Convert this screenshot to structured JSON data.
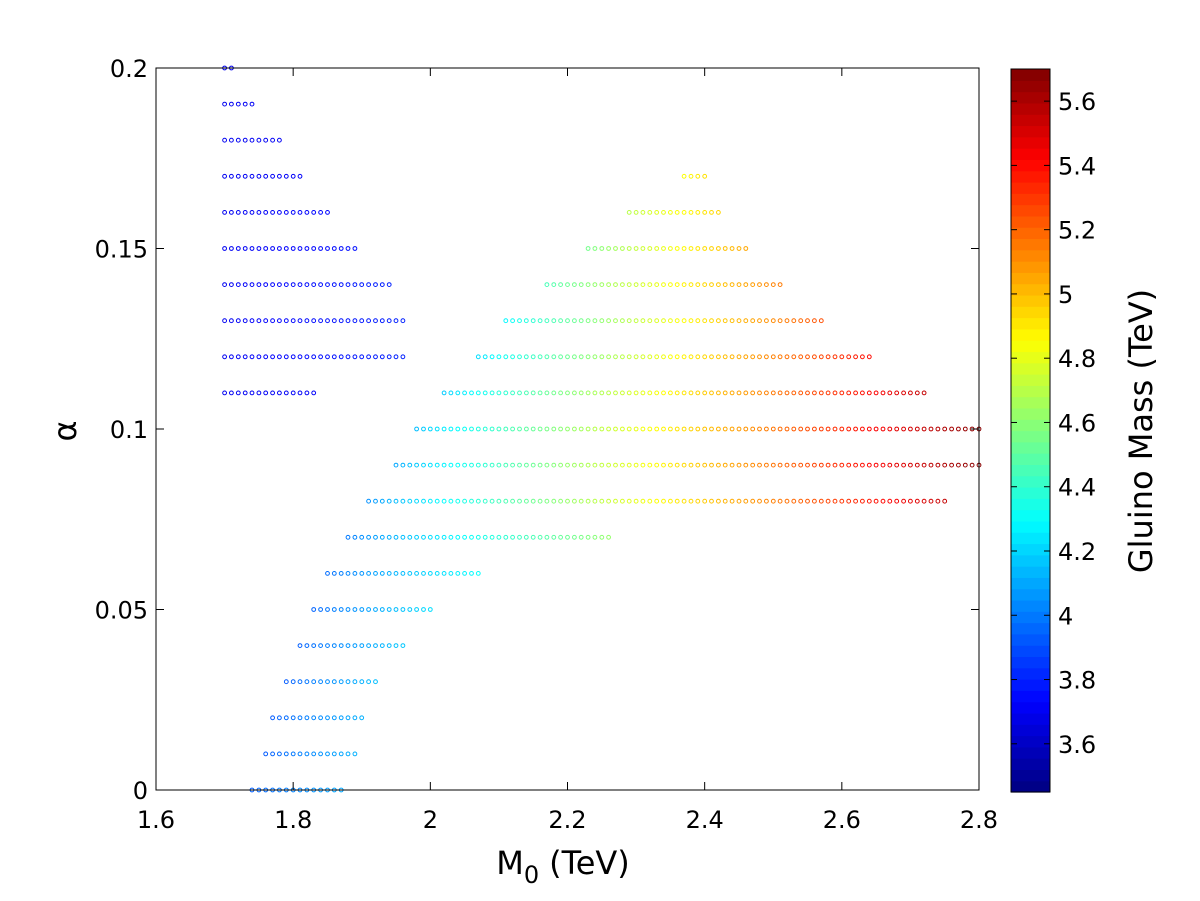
{
  "chart_data": {
    "type": "scatter",
    "title": "",
    "xlabel": "M",
    "xlabel_sub": "0",
    "xlabel_unit": "(TeV)",
    "ylabel": "α",
    "xlim": [
      1.6,
      2.8
    ],
    "ylim": [
      0,
      0.2
    ],
    "x_ticks": [
      1.6,
      1.8,
      2.0,
      2.2,
      2.4,
      2.6,
      2.8
    ],
    "x_tick_labels": [
      "1.6",
      "1.8",
      "2",
      "2.2",
      "2.4",
      "2.6",
      "2.8"
    ],
    "y_ticks": [
      0,
      0.05,
      0.1,
      0.15,
      0.2
    ],
    "y_tick_labels": [
      "0",
      "0.05",
      "0.1",
      "0.15",
      "0.2"
    ],
    "grid": false,
    "marker": "open-circle",
    "colorbar": {
      "label": "Gluino Mass (TeV)",
      "range": [
        3.45,
        5.7
      ],
      "ticks": [
        3.6,
        3.8,
        4.0,
        4.2,
        4.4,
        4.6,
        4.8,
        5.0,
        5.2,
        5.4,
        5.6
      ],
      "tick_labels": [
        "3.6",
        "3.8",
        "4",
        "4.2",
        "4.4",
        "4.6",
        "4.8",
        "5",
        "5.2",
        "5.4",
        "5.6"
      ],
      "colormap": "jet"
    },
    "x_step": 0.01,
    "rows": [
      {
        "alpha": 0.0,
        "x_start": 1.74,
        "x_end": 1.87,
        "c_start": 3.94,
        "c_end": 4.1
      },
      {
        "alpha": 0.01,
        "x_start": 1.76,
        "x_end": 1.89,
        "c_start": 3.93,
        "c_end": 4.12
      },
      {
        "alpha": 0.02,
        "x_start": 1.77,
        "x_end": 1.9,
        "c_start": 3.93,
        "c_end": 4.12
      },
      {
        "alpha": 0.03,
        "x_start": 1.79,
        "x_end": 1.92,
        "c_start": 3.93,
        "c_end": 4.15
      },
      {
        "alpha": 0.04,
        "x_start": 1.81,
        "x_end": 1.96,
        "c_start": 3.94,
        "c_end": 4.17
      },
      {
        "alpha": 0.05,
        "x_start": 1.83,
        "x_end": 2.0,
        "c_start": 3.95,
        "c_end": 4.22
      },
      {
        "alpha": 0.06,
        "x_start": 1.85,
        "x_end": 2.07,
        "c_start": 3.97,
        "c_end": 4.3
      },
      {
        "alpha": 0.07,
        "x_start": 1.88,
        "x_end": 2.26,
        "c_start": 4.0,
        "c_end": 4.62
      },
      {
        "alpha": 0.08,
        "x_start": 1.91,
        "x_end": 2.75,
        "c_start": 4.05,
        "c_end": 5.55
      },
      {
        "alpha": 0.09,
        "x_start": 1.95,
        "x_end": 2.8,
        "c_start": 4.1,
        "c_end": 5.68
      },
      {
        "alpha": 0.1,
        "x_start": 1.98,
        "x_end": 2.8,
        "c_start": 4.15,
        "c_end": 5.68
      },
      {
        "alpha": 0.11,
        "x_start": 2.02,
        "x_end": 2.72,
        "c_start": 4.18,
        "c_end": 5.55
      },
      {
        "alpha": 0.12,
        "x_start": 2.07,
        "x_end": 2.64,
        "c_start": 4.22,
        "c_end": 5.4
      },
      {
        "alpha": 0.13,
        "x_start": 2.11,
        "x_end": 2.57,
        "c_start": 4.28,
        "c_end": 5.25
      },
      {
        "alpha": 0.14,
        "x_start": 2.17,
        "x_end": 2.51,
        "c_start": 4.45,
        "c_end": 5.15
      },
      {
        "alpha": 0.15,
        "x_start": 2.23,
        "x_end": 2.46,
        "c_start": 4.55,
        "c_end": 5.05
      },
      {
        "alpha": 0.16,
        "x_start": 2.29,
        "x_end": 2.42,
        "c_start": 4.7,
        "c_end": 4.95
      },
      {
        "alpha": 0.17,
        "x_start": 2.37,
        "x_end": 2.4,
        "c_start": 4.85,
        "c_end": 4.92
      },
      {
        "alpha": 0.11,
        "x_start": 1.7,
        "x_end": 1.83,
        "c_start": 3.7,
        "c_end": 3.72
      },
      {
        "alpha": 0.12,
        "x_start": 1.7,
        "x_end": 1.96,
        "c_start": 3.7,
        "c_end": 3.8
      },
      {
        "alpha": 0.13,
        "x_start": 1.7,
        "x_end": 1.96,
        "c_start": 3.7,
        "c_end": 3.8
      },
      {
        "alpha": 0.14,
        "x_start": 1.7,
        "x_end": 1.94,
        "c_start": 3.7,
        "c_end": 3.8
      },
      {
        "alpha": 0.15,
        "x_start": 1.7,
        "x_end": 1.89,
        "c_start": 3.7,
        "c_end": 3.76
      },
      {
        "alpha": 0.16,
        "x_start": 1.7,
        "x_end": 1.85,
        "c_start": 3.7,
        "c_end": 3.74
      },
      {
        "alpha": 0.17,
        "x_start": 1.7,
        "x_end": 1.81,
        "c_start": 3.7,
        "c_end": 3.72
      },
      {
        "alpha": 0.18,
        "x_start": 1.7,
        "x_end": 1.78,
        "c_start": 3.7,
        "c_end": 3.71
      },
      {
        "alpha": 0.19,
        "x_start": 1.7,
        "x_end": 1.74,
        "c_start": 3.7,
        "c_end": 3.71
      },
      {
        "alpha": 0.2,
        "x_start": 1.7,
        "x_end": 1.71,
        "c_start": 3.7,
        "c_end": 3.7
      }
    ]
  }
}
